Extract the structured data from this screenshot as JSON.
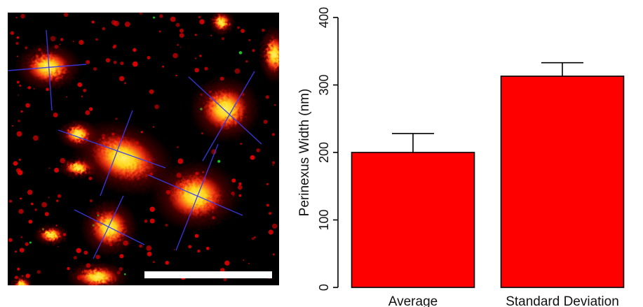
{
  "figure": {
    "micrograph": {
      "scale_bar_color": "#ffffff",
      "stain_colors": {
        "red": "#e00000",
        "yellow": "#ffe81a",
        "green": "#12c81e",
        "blue_lines": "#3a3ae8"
      }
    }
  },
  "chart_data": {
    "type": "bar",
    "categories": [
      "Average",
      "Standard Deviation"
    ],
    "values": [
      200,
      313
    ],
    "errors": [
      28,
      20
    ],
    "title": "",
    "xlabel": "",
    "ylabel": "Perinexus Width (nm)",
    "ylim": [
      0,
      400
    ],
    "yticks": [
      0,
      100,
      200,
      300,
      400
    ],
    "bar_color": "#ff0000",
    "grid": false,
    "legend": "none"
  }
}
